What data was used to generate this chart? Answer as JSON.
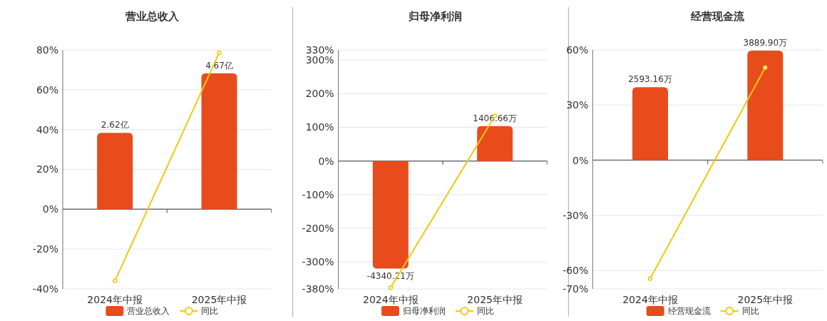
{
  "chart_data": [
    {
      "type": "bar",
      "title": "营业总收入",
      "categories": [
        "2024年中报",
        "2025年中报"
      ],
      "series": [
        {
          "name": "营业总收入",
          "axis": "y2",
          "color": "#e84c1d",
          "values": [
            2.62,
            4.67
          ],
          "value_labels": [
            "2.62亿",
            "4.67亿"
          ]
        },
        {
          "name": "同比",
          "type": "line",
          "color": "#f2c80f",
          "values": [
            -36.0,
            78.6
          ]
        }
      ],
      "ylim": [
        -40,
        80
      ],
      "yticks": [
        {
          "value": -40,
          "label": "-40%"
        },
        {
          "value": -20,
          "label": "-20%"
        },
        {
          "value": 0,
          "label": "0%"
        },
        {
          "value": 20,
          "label": "20%"
        },
        {
          "value": 40,
          "label": "40%"
        },
        {
          "value": 60,
          "label": "60%"
        },
        {
          "value": 80,
          "label": "80%"
        }
      ],
      "y2lim": [
        -2.74,
        5.47
      ],
      "grid": "y",
      "legend": "bottom",
      "marker": "circle"
    },
    {
      "type": "bar",
      "title": "归母净利润",
      "categories": [
        "2024年中报",
        "2025年中报"
      ],
      "series": [
        {
          "name": "归母净利润",
          "axis": "y2",
          "color": "#e84c1d",
          "values": [
            -4340.21,
            1406.66
          ],
          "value_labels": [
            "-4340.21万",
            "1406.66万"
          ]
        },
        {
          "name": "同比",
          "type": "line",
          "color": "#f2c80f",
          "values": [
            -377,
            134
          ]
        }
      ],
      "ylim": [
        -380,
        330
      ],
      "yticks": [
        {
          "value": -380,
          "label": "-380%"
        },
        {
          "value": -300,
          "label": "-300%"
        },
        {
          "value": -200,
          "label": "-200%"
        },
        {
          "value": -100,
          "label": "-100%"
        },
        {
          "value": 0,
          "label": "0%"
        },
        {
          "value": 100,
          "label": "100%"
        },
        {
          "value": 200,
          "label": "200%"
        },
        {
          "value": 300,
          "label": "300%"
        },
        {
          "value": 330,
          "label": "330%"
        }
      ],
      "y2lim": [
        -5157,
        4478
      ],
      "grid": "y",
      "legend": "bottom",
      "marker": "circle"
    },
    {
      "type": "bar",
      "title": "经营现金流",
      "categories": [
        "2024年中报",
        "2025年中报"
      ],
      "series": [
        {
          "name": "经营现金流",
          "axis": "y2",
          "color": "#e84c1d",
          "values": [
            2593.16,
            3889.9
          ],
          "value_labels": [
            "2593.16万",
            "3889.90万"
          ]
        },
        {
          "name": "同比",
          "type": "line",
          "color": "#f2c80f",
          "values": [
            -64.4,
            50.4
          ]
        }
      ],
      "ylim": [
        -70,
        60
      ],
      "yticks": [
        {
          "value": -70,
          "label": "-70%"
        },
        {
          "value": -60,
          "label": "-60%"
        },
        {
          "value": -30,
          "label": "-30%"
        },
        {
          "value": 0,
          "label": "0%"
        },
        {
          "value": 30,
          "label": "30%"
        },
        {
          "value": 60,
          "label": "60%"
        }
      ],
      "y2lim": [
        -4569,
        3916
      ],
      "grid": "y",
      "legend": "bottom",
      "marker": "circle"
    }
  ]
}
